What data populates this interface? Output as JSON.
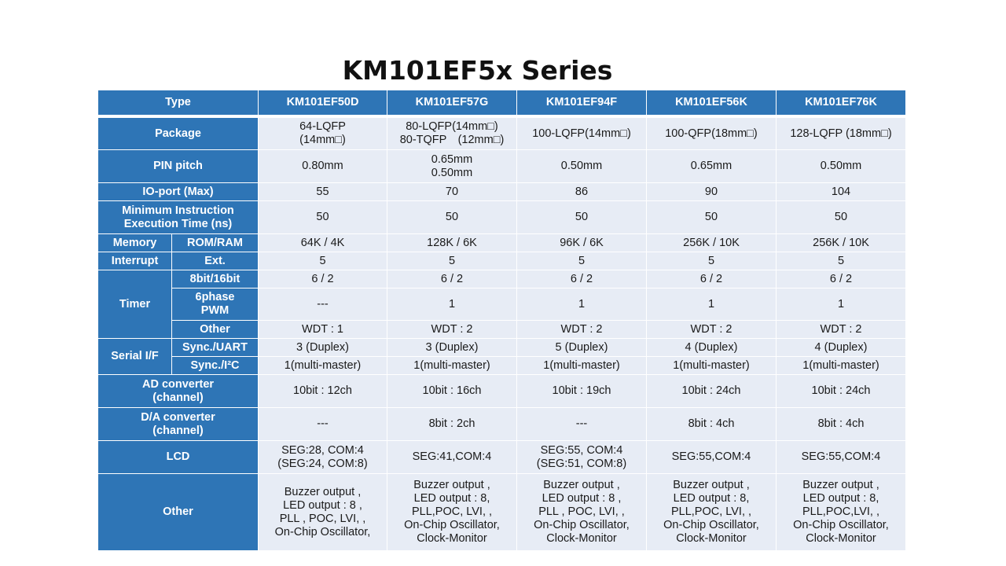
{
  "title": "KM101EF5x Series",
  "header": {
    "type_label": "Type",
    "models": [
      "KM101EF50D",
      "KM101EF57G",
      "KM101EF94F",
      "KM101EF56K",
      "KM101EF76K"
    ]
  },
  "rows": {
    "package": {
      "label": "Package",
      "values": [
        "64-LQFP\n(14mm□)",
        "80-LQFP(14mm□)\n80-TQFP　(12mm□)",
        "100-LQFP(14mm□)",
        "100-QFP(18mm□)",
        "128-LQFP (18mm□)"
      ]
    },
    "pin_pitch": {
      "label": "PIN pitch",
      "values": [
        "0.80mm",
        "0.65mm\n0.50mm",
        "0.50mm",
        "0.65mm",
        "0.50mm"
      ]
    },
    "io_port": {
      "label": "IO-port (Max)",
      "values": [
        "55",
        "70",
        "86",
        "90",
        "104"
      ]
    },
    "min_instr": {
      "label": "Minimum Instruction\nExecution Time (ns)",
      "values": [
        "50",
        "50",
        "50",
        "50",
        "50"
      ]
    },
    "memory": {
      "group": "Memory",
      "label": "ROM/RAM",
      "values": [
        "64K / 4K",
        "128K / 6K",
        "96K / 6K",
        "256K / 10K",
        "256K / 10K"
      ]
    },
    "interrupt": {
      "group": "Interrupt",
      "label": "Ext.",
      "values": [
        "5",
        "5",
        "5",
        "5",
        "5"
      ]
    },
    "timer_8_16": {
      "group": "Timer",
      "label": "8bit/16bit",
      "values": [
        "6 / 2",
        "6 / 2",
        "6 / 2",
        "6 / 2",
        "6 / 2"
      ]
    },
    "timer_6phase": {
      "label": "6phase\nPWM",
      "values": [
        "---",
        "1",
        "1",
        "1",
        "1"
      ]
    },
    "timer_other": {
      "label": "Other",
      "values": [
        "WDT : 1",
        "WDT : 2",
        "WDT : 2",
        "WDT : 2",
        "WDT : 2"
      ]
    },
    "serial_uart": {
      "group": "Serial I/F",
      "label": "Sync./UART",
      "values": [
        "3 (Duplex)",
        "3 (Duplex)",
        "5 (Duplex)",
        "4 (Duplex)",
        "4 (Duplex)"
      ]
    },
    "serial_i2c": {
      "label": "Sync./I²C",
      "values": [
        "1(multi-master)",
        "1(multi-master)",
        "1(multi-master)",
        "1(multi-master)",
        "1(multi-master)"
      ]
    },
    "ad": {
      "label": "AD converter\n(channel)",
      "values": [
        "10bit : 12ch",
        "10bit : 16ch",
        "10bit : 19ch",
        "10bit : 24ch",
        "10bit : 24ch"
      ]
    },
    "da": {
      "label": "D/A converter\n(channel)",
      "values": [
        "---",
        "8bit : 2ch",
        "---",
        "8bit : 4ch",
        "8bit : 4ch"
      ]
    },
    "lcd": {
      "label": "LCD",
      "values": [
        "SEG:28, COM:4\n(SEG:24, COM:8)",
        "SEG:41,COM:4",
        "SEG:55, COM:4\n(SEG:51, COM:8)",
        "SEG:55,COM:4",
        "SEG:55,COM:4"
      ]
    },
    "other": {
      "label": "Other",
      "values": [
        "Buzzer output ,\nLED output : 8 ,\nPLL , POC, LVI, ,\nOn-Chip Oscillator,",
        "Buzzer output ,\nLED output : 8,\nPLL,POC, LVI, ,\nOn-Chip Oscillator,\nClock-Monitor",
        "Buzzer output ,\nLED output : 8 ,\nPLL , POC, LVI, ,\nOn-Chip Oscillator,\nClock-Monitor",
        "Buzzer output ,\nLED output : 8,\nPLL,POC, LVI, ,\nOn-Chip Oscillator,\nClock-Monitor",
        "Buzzer output ,\nLED output : 8,\nPLL,POC,LVI, ,\nOn-Chip Oscillator,\nClock-Monitor"
      ]
    }
  }
}
